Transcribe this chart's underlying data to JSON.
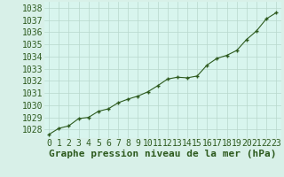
{
  "x": [
    0,
    1,
    2,
    3,
    4,
    5,
    6,
    7,
    8,
    9,
    10,
    11,
    12,
    13,
    14,
    15,
    16,
    17,
    18,
    19,
    20,
    21,
    22,
    23
  ],
  "y": [
    1027.6,
    1028.1,
    1028.3,
    1028.9,
    1029.0,
    1029.5,
    1029.7,
    1030.2,
    1030.5,
    1030.75,
    1031.1,
    1031.6,
    1032.15,
    1032.3,
    1032.25,
    1032.4,
    1033.3,
    1033.85,
    1034.1,
    1034.5,
    1035.4,
    1036.1,
    1037.1,
    1037.6
  ],
  "line_color": "#2d5a1e",
  "marker": "+",
  "bg_color": "#d8f0e8",
  "plot_bg_color": "#d8f5ee",
  "grid_color": "#b8d8cc",
  "ylabel_ticks": [
    1028,
    1029,
    1030,
    1031,
    1032,
    1033,
    1034,
    1035,
    1036,
    1037,
    1038
  ],
  "xlabel": "Graphe pression niveau de la mer (hPa)",
  "ylim": [
    1027.3,
    1038.5
  ],
  "xlim": [
    -0.5,
    23.5
  ],
  "title_color": "#2d5a1e",
  "xlabel_fontsize": 8,
  "tick_fontsize": 7
}
